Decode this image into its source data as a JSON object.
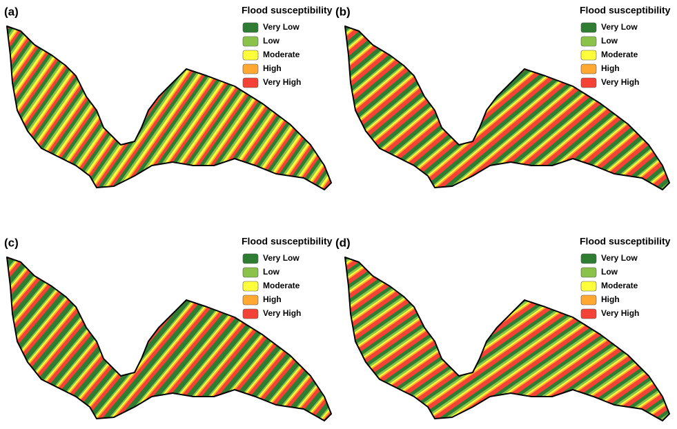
{
  "panels": [
    {
      "label": "(a)",
      "legend": {
        "title": "Flood susceptibility",
        "items": [
          {
            "name": "Very Low",
            "color": "#2e7d32"
          },
          {
            "name": "Low",
            "color": "#8bc34a"
          },
          {
            "name": "Moderate",
            "color": "#ffff3b"
          },
          {
            "name": "High",
            "color": "#ffa832"
          },
          {
            "name": "Very High",
            "color": "#f44336"
          }
        ]
      }
    },
    {
      "label": "(b)",
      "legend": {
        "title": "Flood susceptibility",
        "items": [
          {
            "name": "Very Low",
            "color": "#2e7d32"
          },
          {
            "name": "Low",
            "color": "#8bc34a"
          },
          {
            "name": "Moderate",
            "color": "#ffff3b"
          },
          {
            "name": "High",
            "color": "#ffa832"
          },
          {
            "name": "Very High",
            "color": "#f44336"
          }
        ]
      }
    },
    {
      "label": "(c)",
      "legend": {
        "title": "Flood susceptibility",
        "items": [
          {
            "name": "Very Low",
            "color": "#2e7d32"
          },
          {
            "name": "Low",
            "color": "#8bc34a"
          },
          {
            "name": "Moderate",
            "color": "#ffff3b"
          },
          {
            "name": "High",
            "color": "#ffa832"
          },
          {
            "name": "Very High",
            "color": "#f44336"
          }
        ]
      }
    },
    {
      "label": "(d)",
      "legend": {
        "title": "Flood susceptibility",
        "items": [
          {
            "name": "Very Low",
            "color": "#2e7d32"
          },
          {
            "name": "Low",
            "color": "#8bc34a"
          },
          {
            "name": "Moderate",
            "color": "#ffff3b"
          },
          {
            "name": "High",
            "color": "#ffa832"
          },
          {
            "name": "Very High",
            "color": "#f44336"
          }
        ]
      }
    }
  ]
}
